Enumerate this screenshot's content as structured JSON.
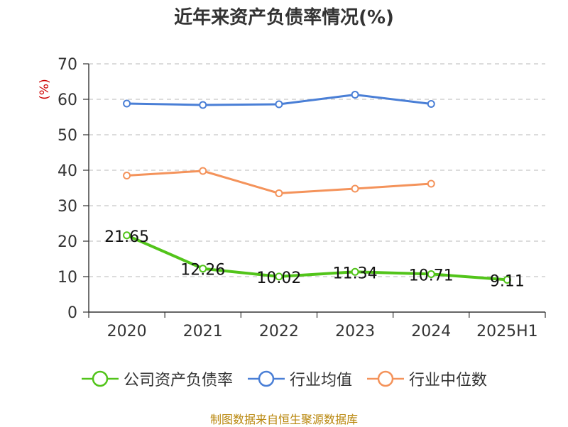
{
  "chart_data": {
    "type": "line",
    "title": "近年来资产负债率情况(%)",
    "ylabel": "(%)",
    "categories": [
      "2020",
      "2021",
      "2022",
      "2023",
      "2024",
      "2025H1"
    ],
    "yticks": [
      "0",
      "10",
      "20",
      "30",
      "40",
      "50",
      "60",
      "70"
    ],
    "ylim": [
      0,
      70
    ],
    "grid": true,
    "legend_position": "bottom",
    "series": [
      {
        "name": "公司资产负债率",
        "color": "#52c41a",
        "values": [
          21.65,
          12.26,
          10.02,
          11.34,
          10.71,
          9.11
        ],
        "labels": [
          "21.65",
          "12.26",
          "10.02",
          "11.34",
          "10.71",
          "9.11"
        ]
      },
      {
        "name": "行业均值",
        "color": "#4a7fd6",
        "values": [
          58.8,
          58.4,
          58.6,
          61.3,
          58.7,
          null
        ]
      },
      {
        "name": "行业中位数",
        "color": "#f4935b",
        "values": [
          38.5,
          39.8,
          33.5,
          34.8,
          36.2,
          null
        ]
      }
    ],
    "source": "制图数据来自恒生聚源数据库"
  }
}
